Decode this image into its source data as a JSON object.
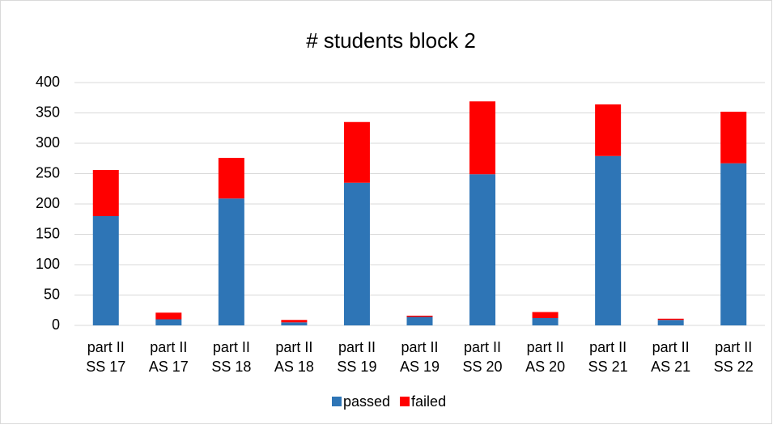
{
  "chart_data": {
    "type": "stacked_bar",
    "title": "# students block 2",
    "categories": [
      "part II\nSS 17",
      "part II\nAS 17",
      "part II\nSS 18",
      "part II\nAS 18",
      "part II\nSS 19",
      "part II\nAS 19",
      "part II\nSS 20",
      "part II\nAS 20",
      "part II\nSS 21",
      "part II\nAS 21",
      "part II\nSS 22"
    ],
    "series": [
      {
        "name": "passed",
        "color": "#2e75b6",
        "values": [
          180,
          10,
          209,
          5,
          235,
          14,
          249,
          12,
          279,
          9,
          267
        ]
      },
      {
        "name": "failed",
        "color": "#ff0000",
        "values": [
          76,
          11,
          67,
          4,
          100,
          2,
          120,
          10,
          85,
          2,
          85
        ]
      }
    ],
    "ylim": [
      0,
      400
    ],
    "yticks": [
      0,
      50,
      100,
      150,
      200,
      250,
      300,
      350,
      400
    ],
    "grid": true,
    "legend": "bottom"
  }
}
